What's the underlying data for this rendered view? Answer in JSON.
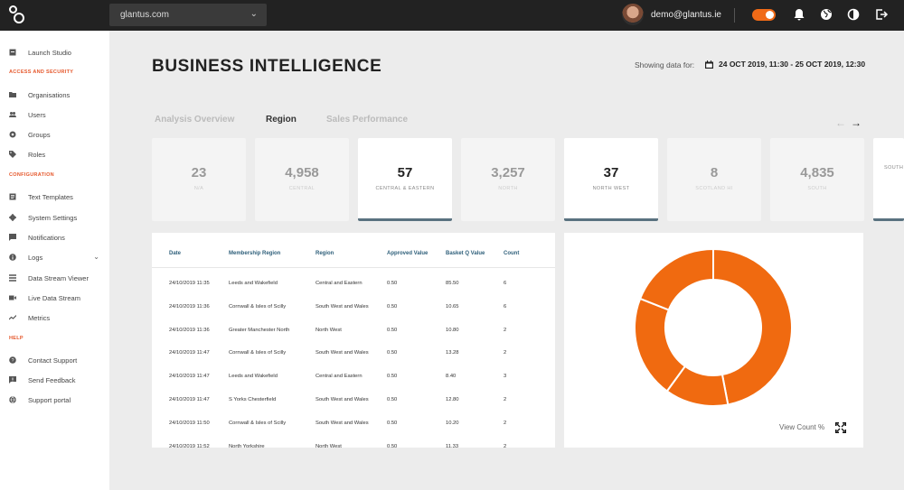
{
  "header": {
    "domain": "glantus.com",
    "user_email": "demo@glantus.ie"
  },
  "sidebar": {
    "items": [
      {
        "label": "Launch Studio",
        "icon": "studio-icon"
      },
      {
        "section": "ACCESS AND SECURITY"
      },
      {
        "label": "Organisations",
        "icon": "folder-icon"
      },
      {
        "label": "Users",
        "icon": "users-icon"
      },
      {
        "label": "Groups",
        "icon": "groups-icon"
      },
      {
        "label": "Roles",
        "icon": "tag-icon"
      },
      {
        "section": "CONFIGURATION"
      },
      {
        "label": "Text Templates",
        "icon": "template-icon"
      },
      {
        "label": "System Settings",
        "icon": "gear-icon"
      },
      {
        "label": "Notifications",
        "icon": "notification-icon"
      },
      {
        "label": "Logs",
        "icon": "info-icon",
        "expandable": true
      },
      {
        "label": "Data Stream Viewer",
        "icon": "list-icon"
      },
      {
        "label": "Live Data Stream",
        "icon": "video-icon"
      },
      {
        "label": "Metrics",
        "icon": "trend-icon"
      },
      {
        "section": "HELP"
      },
      {
        "label": "Contact Support",
        "icon": "help-icon"
      },
      {
        "label": "Send Feedback",
        "icon": "feedback-icon"
      },
      {
        "label": "Support portal",
        "icon": "globe-icon"
      }
    ]
  },
  "main": {
    "title": "BUSINESS INTELLIGENCE",
    "showing_label": "Showing data for:",
    "date_range": "24 OCT 2019, 11:30 - 25 OCT 2019, 12:30",
    "tabs": [
      {
        "label": "Analysis Overview",
        "active": false
      },
      {
        "label": "Region",
        "active": true
      },
      {
        "label": "Sales Performance",
        "active": false
      }
    ],
    "cards": [
      {
        "value": "23",
        "label": "N/A",
        "active": false
      },
      {
        "value": "4,958",
        "label": "CENTRAL",
        "active": false
      },
      {
        "value": "57",
        "label": "CENTRAL & EASTERN",
        "active": true
      },
      {
        "value": "3,257",
        "label": "NORTH",
        "active": false
      },
      {
        "value": "37",
        "label": "NORTH WEST",
        "active": true
      },
      {
        "value": "8",
        "label": "SCOTLAND HI",
        "active": false
      },
      {
        "value": "4,835",
        "label": "SOUTH",
        "active": false
      },
      {
        "value": "",
        "label": "SOUTH",
        "active": true
      }
    ],
    "table": {
      "columns": [
        "Date",
        "Membership Region",
        "Region",
        "Approved Value",
        "Basket Q Value",
        "Count"
      ],
      "rows": [
        [
          "24/10/2019 11:35",
          "Leeds and Wakefield",
          "Central and Eastern",
          "0.50",
          "85.50",
          "6"
        ],
        [
          "24/10/2019 11:36",
          "Cornwall & Isles of Scilly",
          "South West and Wales",
          "0.50",
          "10.65",
          "6"
        ],
        [
          "24/10/2019 11:36",
          "Greater Manchester North",
          "North West",
          "0.50",
          "10.80",
          "2"
        ],
        [
          "24/10/2019 11:47",
          "Cornwall & Isles of Scilly",
          "South West and Wales",
          "0.50",
          "13.28",
          "2"
        ],
        [
          "24/10/2019 11:47",
          "Leeds and Wakefield",
          "Central and Eastern",
          "0.50",
          "8.40",
          "3"
        ],
        [
          "24/10/2019 11:47",
          "S Yorks Chesterfield",
          "South West and Wales",
          "0.50",
          "12.80",
          "2"
        ],
        [
          "24/10/2019 11:50",
          "Cornwall & Isles of Scilly",
          "South West and Wales",
          "0.50",
          "10.20",
          "2"
        ],
        [
          "24/10/2019 11:52",
          "North Yorkshire",
          "North West",
          "0.50",
          "11.33",
          "2"
        ]
      ]
    },
    "chart": {
      "view_label": "View Count %",
      "accent": "#f06a10"
    }
  },
  "chart_data": {
    "type": "pie",
    "categories": [
      "",
      "",
      "",
      ""
    ],
    "values": [
      47,
      13,
      21,
      19
    ],
    "title": "",
    "legend": "none"
  }
}
